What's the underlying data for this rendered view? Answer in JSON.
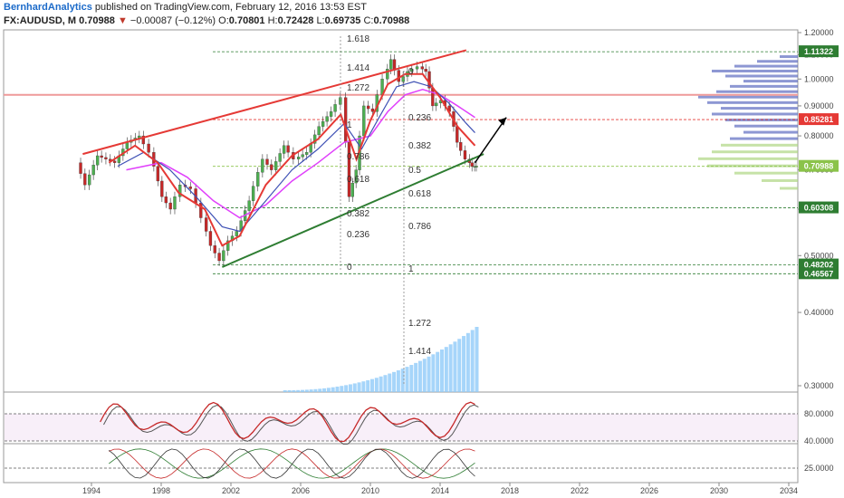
{
  "header": {
    "author": "BernhardAnalytics",
    "published": "published on TradingView.com, February 12, 2016 13:53 EST",
    "symbol": "FX:AUDUSD, M",
    "last": "0.70988",
    "change_arrow": "▼",
    "change": "−0.00087 (−0.12%)",
    "open_label": "O:",
    "open": "0.70801",
    "high_label": "H:",
    "high": "0.72428",
    "low_label": "L:",
    "low": "0.69735",
    "close_label": "C:",
    "close": "0.70988"
  },
  "chart_data": {
    "type": "candlestick",
    "x_ticks": [
      "1994",
      "1998",
      "2002",
      "2006",
      "2010",
      "2014",
      "2018",
      "2022",
      "2026",
      "2030",
      "2034"
    ],
    "price_ticks": [
      "1.20000",
      "1.10000",
      "1.00000",
      "0.90000",
      "0.80000",
      "0.70000",
      "0.60000",
      "0.50000",
      "0.40000",
      "0.30000"
    ],
    "price_range": [
      0.28,
      1.22
    ],
    "price_axis_scale": "log",
    "price_badges": [
      {
        "value": 1.11322,
        "label": "1.11322",
        "color": "#2e7d32"
      },
      {
        "value": 0.85281,
        "label": "0.85281",
        "color": "#e53935"
      },
      {
        "value": 0.70988,
        "label": "0.70988",
        "color": "#8bc34a"
      },
      {
        "value": 0.60308,
        "label": "0.60308",
        "color": "#2e7d32"
      },
      {
        "value": 0.48202,
        "label": "0.48202",
        "color": "#2e7d32"
      },
      {
        "value": 0.46567,
        "label": "0.46567",
        "color": "#2e7d32"
      }
    ],
    "price_path": [
      [
        1993.3,
        0.72
      ],
      [
        1993.8,
        0.66
      ],
      [
        1994.5,
        0.74
      ],
      [
        1995.0,
        0.73
      ],
      [
        1995.5,
        0.72
      ],
      [
        1996.2,
        0.78
      ],
      [
        1996.9,
        0.8
      ],
      [
        1997.5,
        0.75
      ],
      [
        1998.2,
        0.63
      ],
      [
        1998.7,
        0.6
      ],
      [
        1999.3,
        0.66
      ],
      [
        1999.9,
        0.65
      ],
      [
        2000.5,
        0.58
      ],
      [
        2001.0,
        0.52
      ],
      [
        2001.5,
        0.49
      ],
      [
        2002.0,
        0.53
      ],
      [
        2002.5,
        0.55
      ],
      [
        2003.2,
        0.62
      ],
      [
        2004.0,
        0.73
      ],
      [
        2004.5,
        0.7
      ],
      [
        2005.2,
        0.77
      ],
      [
        2005.8,
        0.73
      ],
      [
        2006.5,
        0.75
      ],
      [
        2007.2,
        0.83
      ],
      [
        2007.9,
        0.88
      ],
      [
        2008.5,
        0.93
      ],
      [
        2008.9,
        0.63
      ],
      [
        2009.3,
        0.7
      ],
      [
        2009.8,
        0.9
      ],
      [
        2010.3,
        0.88
      ],
      [
        2010.9,
        1.0
      ],
      [
        2011.3,
        1.08
      ],
      [
        2011.8,
        0.99
      ],
      [
        2012.3,
        1.03
      ],
      [
        2012.9,
        1.05
      ],
      [
        2013.3,
        1.03
      ],
      [
        2013.7,
        0.9
      ],
      [
        2014.2,
        0.92
      ],
      [
        2014.7,
        0.88
      ],
      [
        2015.1,
        0.78
      ],
      [
        2015.6,
        0.73
      ],
      [
        2015.9,
        0.71
      ],
      [
        2016.1,
        0.71
      ]
    ],
    "ema_fast": [
      [
        1995.0,
        0.72
      ],
      [
        1996.5,
        0.77
      ],
      [
        1997.8,
        0.72
      ],
      [
        1999.0,
        0.64
      ],
      [
        2000.5,
        0.6
      ],
      [
        2001.5,
        0.52
      ],
      [
        2002.5,
        0.54
      ],
      [
        2004.0,
        0.66
      ],
      [
        2005.5,
        0.74
      ],
      [
        2007.0,
        0.79
      ],
      [
        2008.3,
        0.87
      ],
      [
        2009.2,
        0.73
      ],
      [
        2010.0,
        0.85
      ],
      [
        2011.0,
        0.98
      ],
      [
        2012.0,
        1.02
      ],
      [
        2013.0,
        1.02
      ],
      [
        2014.0,
        0.93
      ],
      [
        2015.0,
        0.83
      ],
      [
        2016.0,
        0.77
      ]
    ],
    "ema_mid": [
      [
        1995.5,
        0.71
      ],
      [
        1997.0,
        0.75
      ],
      [
        1998.5,
        0.7
      ],
      [
        2000.0,
        0.63
      ],
      [
        2001.5,
        0.56
      ],
      [
        2002.5,
        0.55
      ],
      [
        2004.0,
        0.62
      ],
      [
        2005.5,
        0.7
      ],
      [
        2007.0,
        0.76
      ],
      [
        2008.5,
        0.84
      ],
      [
        2009.5,
        0.76
      ],
      [
        2010.5,
        0.86
      ],
      [
        2011.5,
        0.97
      ],
      [
        2012.5,
        0.99
      ],
      [
        2013.5,
        0.97
      ],
      [
        2014.5,
        0.91
      ],
      [
        2015.5,
        0.84
      ],
      [
        2016.0,
        0.81
      ]
    ],
    "ema_slow": [
      [
        1996.0,
        0.7
      ],
      [
        1998.0,
        0.72
      ],
      [
        1999.5,
        0.68
      ],
      [
        2001.0,
        0.62
      ],
      [
        2002.5,
        0.58
      ],
      [
        2004.0,
        0.61
      ],
      [
        2005.5,
        0.67
      ],
      [
        2007.0,
        0.72
      ],
      [
        2008.5,
        0.78
      ],
      [
        2010.0,
        0.8
      ],
      [
        2011.0,
        0.88
      ],
      [
        2012.0,
        0.94
      ],
      [
        2013.0,
        0.96
      ],
      [
        2014.0,
        0.94
      ],
      [
        2015.0,
        0.9
      ],
      [
        2016.0,
        0.86
      ]
    ],
    "channel_upper": [
      [
        1993.5,
        0.745
      ],
      [
        2015.5,
        1.12
      ]
    ],
    "channel_lower": [
      [
        2001.5,
        0.478
      ],
      [
        2016.5,
        0.745
      ]
    ],
    "projection_arrow": [
      [
        2016.0,
        0.72
      ],
      [
        2017.8,
        0.86
      ]
    ],
    "horizontal_line": 0.94,
    "fib_levels": [
      "1.618",
      "1.414",
      "1.272",
      "1",
      "0.786",
      "0.618",
      "0.382",
      "0.236",
      "0",
      "0",
      "0.236",
      "0.382",
      "0.5",
      "0.618",
      "0.786",
      "1",
      "1.272",
      "1.414"
    ],
    "stoch_ticks": [
      "80.0000",
      "40.0000"
    ],
    "adx_ticks": [
      "25.0000"
    ]
  }
}
